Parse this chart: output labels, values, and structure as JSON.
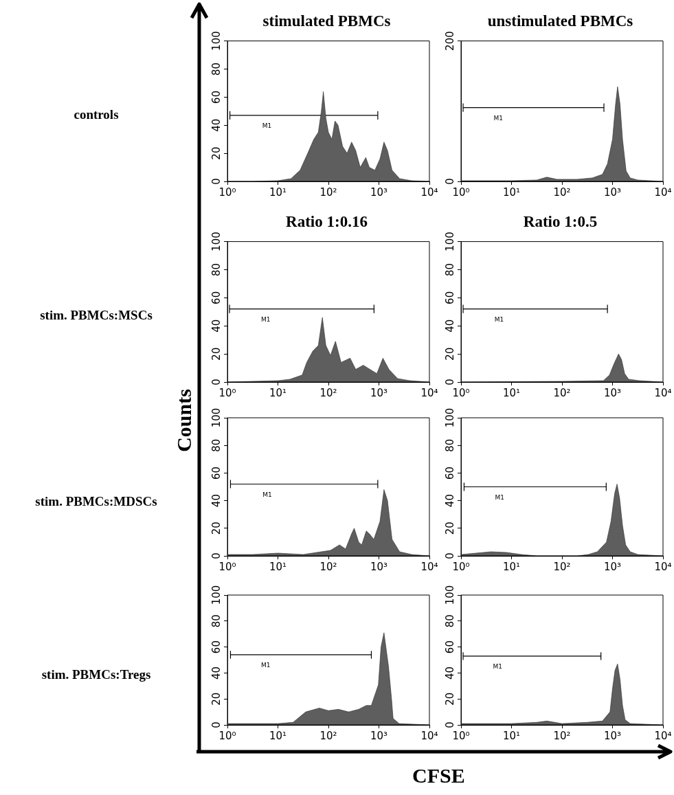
{
  "chart_data": [
    {
      "type": "area",
      "title": "stimulated PBMCs",
      "annotations": [
        "M1",
        "controls"
      ],
      "log": "x",
      "xlim": [
        1,
        10000
      ],
      "xticks": [
        {
          "value": 1,
          "label": "10⁰"
        },
        {
          "value": 10,
          "label": "10¹"
        },
        {
          "value": 100,
          "label": "10²"
        },
        {
          "value": 1000,
          "label": "10³"
        },
        {
          "value": 10000,
          "label": "10⁴"
        }
      ],
      "ylim": [
        0,
        100
      ],
      "yticks": [
        0,
        20,
        40,
        60,
        80,
        100
      ],
      "series": [
        {
          "color": "#5e5e5e",
          "x": [
            1,
            3.16,
            10,
            18.2,
            27.5,
            38.9,
            51.3,
            63.1,
            72.4,
            79.4,
            89.1,
            100,
            117,
            135,
            155,
            191,
            234,
            288,
            347,
            427,
            550,
            646,
            832,
            1050,
            1260,
            1480,
            1820,
            2570,
            4470,
            10000
          ],
          "values": [
            0,
            0,
            0.5,
            2,
            8,
            20,
            30,
            35,
            50,
            64,
            45,
            35,
            30,
            43,
            40,
            25,
            20,
            28,
            22,
            10,
            17,
            10,
            8,
            16,
            28,
            22,
            8,
            2,
            0.5,
            0
          ]
        },
        {
          "type": "line",
          "color": "#000000",
          "x": [
            1.12,
            950
          ],
          "values": [
            47,
            47
          ],
          "errors": [
            3,
            3
          ]
        }
      ]
    },
    {
      "type": "area",
      "title": "unstimulated PBMCs",
      "annotations": [
        "M1"
      ],
      "log": "x",
      "xlim": [
        1,
        10000
      ],
      "xticks": [
        {
          "value": 1,
          "label": "10⁰"
        },
        {
          "value": 10,
          "label": "10¹"
        },
        {
          "value": 100,
          "label": "10²"
        },
        {
          "value": 1000,
          "label": "10³"
        },
        {
          "value": 10000,
          "label": "10⁴"
        }
      ],
      "ylim": [
        0,
        200
      ],
      "yticks": [
        0,
        200
      ],
      "series": [
        {
          "color": "#5e5e5e",
          "x": [
            1,
            10,
            31.6,
            50.1,
            79.4,
            200,
            398,
            631,
            794,
            1000,
            1150,
            1260,
            1410,
            1580,
            1860,
            2240,
            3160,
            10000
          ],
          "values": [
            1,
            1,
            2,
            6,
            3,
            3,
            5,
            10,
            25,
            60,
            110,
            135,
            110,
            60,
            15,
            5,
            2,
            0
          ]
        },
        {
          "type": "line",
          "color": "#000000",
          "x": [
            1.1,
            676
          ],
          "values": [
            105,
            105
          ],
          "errors": [
            6,
            6
          ]
        }
      ]
    },
    {
      "type": "area",
      "title": "Ratio 1:0.16",
      "annotations": [
        "M1",
        "stim. PBMCs:MSCs"
      ],
      "log": "x",
      "xlim": [
        1,
        10000
      ],
      "xticks": [
        {
          "value": 1,
          "label": "10⁰"
        },
        {
          "value": 10,
          "label": "10¹"
        },
        {
          "value": 100,
          "label": "10²"
        },
        {
          "value": 1000,
          "label": "10³"
        },
        {
          "value": 10000,
          "label": "10⁴"
        }
      ],
      "ylim": [
        0,
        100
      ],
      "yticks": [
        0,
        20,
        40,
        60,
        80,
        100
      ],
      "series": [
        {
          "color": "#5e5e5e",
          "x": [
            1,
            10.2,
            17.4,
            30.2,
            37.2,
            49,
            63.1,
            75.9,
            89.1,
            110,
            138,
            178,
            269,
            347,
            490,
            741,
            912,
            1200,
            1580,
            2340,
            4070,
            10000
          ],
          "values": [
            0,
            1,
            2,
            5,
            14,
            22,
            26,
            46,
            26,
            19,
            29,
            14,
            17,
            9,
            12,
            8,
            6,
            17,
            9,
            2.5,
            1,
            0
          ]
        },
        {
          "type": "line",
          "color": "#000000",
          "x": [
            1.1,
            800
          ],
          "values": [
            52,
            52
          ],
          "errors": [
            3,
            3
          ]
        }
      ]
    },
    {
      "type": "area",
      "title": "Ratio 1:0.5",
      "annotations": [
        "M1"
      ],
      "log": "x",
      "xlim": [
        1,
        10000
      ],
      "xticks": [
        {
          "value": 1,
          "label": "10⁰"
        },
        {
          "value": 10,
          "label": "10¹"
        },
        {
          "value": 100,
          "label": "10²"
        },
        {
          "value": 1000,
          "label": "10³"
        },
        {
          "value": 10000,
          "label": "10⁴"
        }
      ],
      "ylim": [
        0,
        100
      ],
      "yticks": [
        0,
        20,
        40,
        60,
        80,
        100
      ],
      "series": [
        {
          "color": "#5e5e5e",
          "x": [
            1,
            100,
            661,
            871,
            1070,
            1320,
            1510,
            1740,
            2090,
            3390,
            10000
          ],
          "values": [
            0,
            0.5,
            1,
            5,
            13,
            20,
            16,
            6,
            2,
            1,
            0
          ]
        },
        {
          "type": "line",
          "color": "#000000",
          "x": [
            1.1,
            794
          ],
          "values": [
            52,
            52
          ],
          "errors": [
            3,
            3
          ]
        }
      ]
    },
    {
      "type": "area",
      "ylabel": "Counts",
      "annotations": [
        "M1",
        "stim. PBMCs:MDSCs"
      ],
      "log": "x",
      "xlim": [
        1,
        10000
      ],
      "xticks": [
        {
          "value": 1,
          "label": "10⁰"
        },
        {
          "value": 10,
          "label": "10¹"
        },
        {
          "value": 100,
          "label": "10²"
        },
        {
          "value": 1000,
          "label": "10³"
        },
        {
          "value": 10000,
          "label": "10⁴"
        }
      ],
      "ylim": [
        0,
        100
      ],
      "yticks": [
        0,
        20,
        40,
        60,
        80,
        100
      ],
      "series": [
        {
          "color": "#5e5e5e",
          "x": [
            1,
            3.16,
            10,
            31.6,
            110,
            166,
            219,
            288,
            324,
            398,
            457,
            562,
            646,
            794,
            1050,
            1260,
            1480,
            1820,
            2570,
            4470,
            10000
          ],
          "values": [
            1,
            1,
            2,
            1,
            4,
            8,
            5,
            16,
            20,
            10,
            8,
            18,
            16,
            12,
            25,
            48,
            40,
            12,
            3,
            1,
            0
          ]
        },
        {
          "type": "line",
          "color": "#000000",
          "x": [
            1.15,
            950
          ],
          "values": [
            52,
            52
          ],
          "errors": [
            3,
            3
          ]
        }
      ]
    },
    {
      "type": "area",
      "annotations": [
        "M1"
      ],
      "log": "x",
      "xlim": [
        1,
        10000
      ],
      "xticks": [
        {
          "value": 1,
          "label": "10⁰"
        },
        {
          "value": 10,
          "label": "10¹"
        },
        {
          "value": 100,
          "label": "10²"
        },
        {
          "value": 1000,
          "label": "10³"
        },
        {
          "value": 10000,
          "label": "10⁴"
        }
      ],
      "ylim": [
        0,
        100
      ],
      "yticks": [
        0,
        20,
        40,
        60,
        80,
        100
      ],
      "series": [
        {
          "color": "#5e5e5e",
          "x": [
            1,
            2,
            3.98,
            7.94,
            15.8,
            31.6,
            200,
            331,
            501,
            759,
            933,
            1100,
            1230,
            1380,
            1580,
            1820,
            2240,
            3160,
            10000
          ],
          "values": [
            1,
            2,
            3,
            2.5,
            1,
            0,
            0,
            1,
            3,
            10,
            25,
            45,
            52,
            42,
            22,
            8,
            3,
            1,
            0
          ]
        },
        {
          "type": "line",
          "color": "#000000",
          "x": [
            1.15,
            750
          ],
          "values": [
            50,
            50
          ],
          "errors": [
            3,
            3
          ]
        }
      ]
    },
    {
      "type": "area",
      "xlabel": "CFSE",
      "annotations": [
        "M1",
        "stim. PBMCs:Tregs"
      ],
      "log": "x",
      "xlim": [
        1,
        10000
      ],
      "xticks": [
        {
          "value": 1,
          "label": "10⁰"
        },
        {
          "value": 10,
          "label": "10¹"
        },
        {
          "value": 100,
          "label": "10²"
        },
        {
          "value": 1000,
          "label": "10³"
        },
        {
          "value": 10000,
          "label": "10⁴"
        }
      ],
      "ylim": [
        0,
        100
      ],
      "yticks": [
        0,
        20,
        40,
        60,
        80,
        100
      ],
      "series": [
        {
          "color": "#5e5e5e",
          "x": [
            1,
            10,
            20,
            35.5,
            66.1,
            100,
            158,
            251,
            398,
            562,
            708,
            977,
            1100,
            1260,
            1550,
            1780,
            1910,
            2510,
            10000
          ],
          "values": [
            1,
            1,
            2,
            10,
            13,
            11,
            12,
            10,
            12,
            15,
            15,
            31,
            60,
            71,
            45,
            20,
            5,
            1,
            0
          ]
        },
        {
          "type": "line",
          "color": "#000000",
          "x": [
            1.15,
            708
          ],
          "values": [
            54,
            54
          ],
          "errors": [
            3,
            3
          ]
        }
      ]
    },
    {
      "type": "area",
      "annotations": [
        "M1"
      ],
      "log": "x",
      "xlim": [
        1,
        10000
      ],
      "xticks": [
        {
          "value": 1,
          "label": "10⁰"
        },
        {
          "value": 10,
          "label": "10¹"
        },
        {
          "value": 100,
          "label": "10²"
        },
        {
          "value": 1000,
          "label": "10³"
        },
        {
          "value": 10000,
          "label": "10⁴"
        }
      ],
      "ylim": [
        0,
        100
      ],
      "yticks": [
        0,
        20,
        40,
        60,
        80,
        100
      ],
      "series": [
        {
          "color": "#5e5e5e",
          "x": [
            1,
            10,
            31.6,
            50.1,
            100,
            316,
            631,
            891,
            1000,
            1120,
            1260,
            1410,
            1580,
            1780,
            2240,
            10000
          ],
          "values": [
            1,
            1,
            2,
            3,
            1,
            2,
            3,
            10,
            28,
            42,
            47,
            35,
            15,
            4,
            1,
            0
          ]
        },
        {
          "type": "line",
          "color": "#000000",
          "x": [
            1.1,
            590
          ],
          "values": [
            53,
            53
          ],
          "errors": [
            3,
            3
          ]
        }
      ]
    }
  ]
}
